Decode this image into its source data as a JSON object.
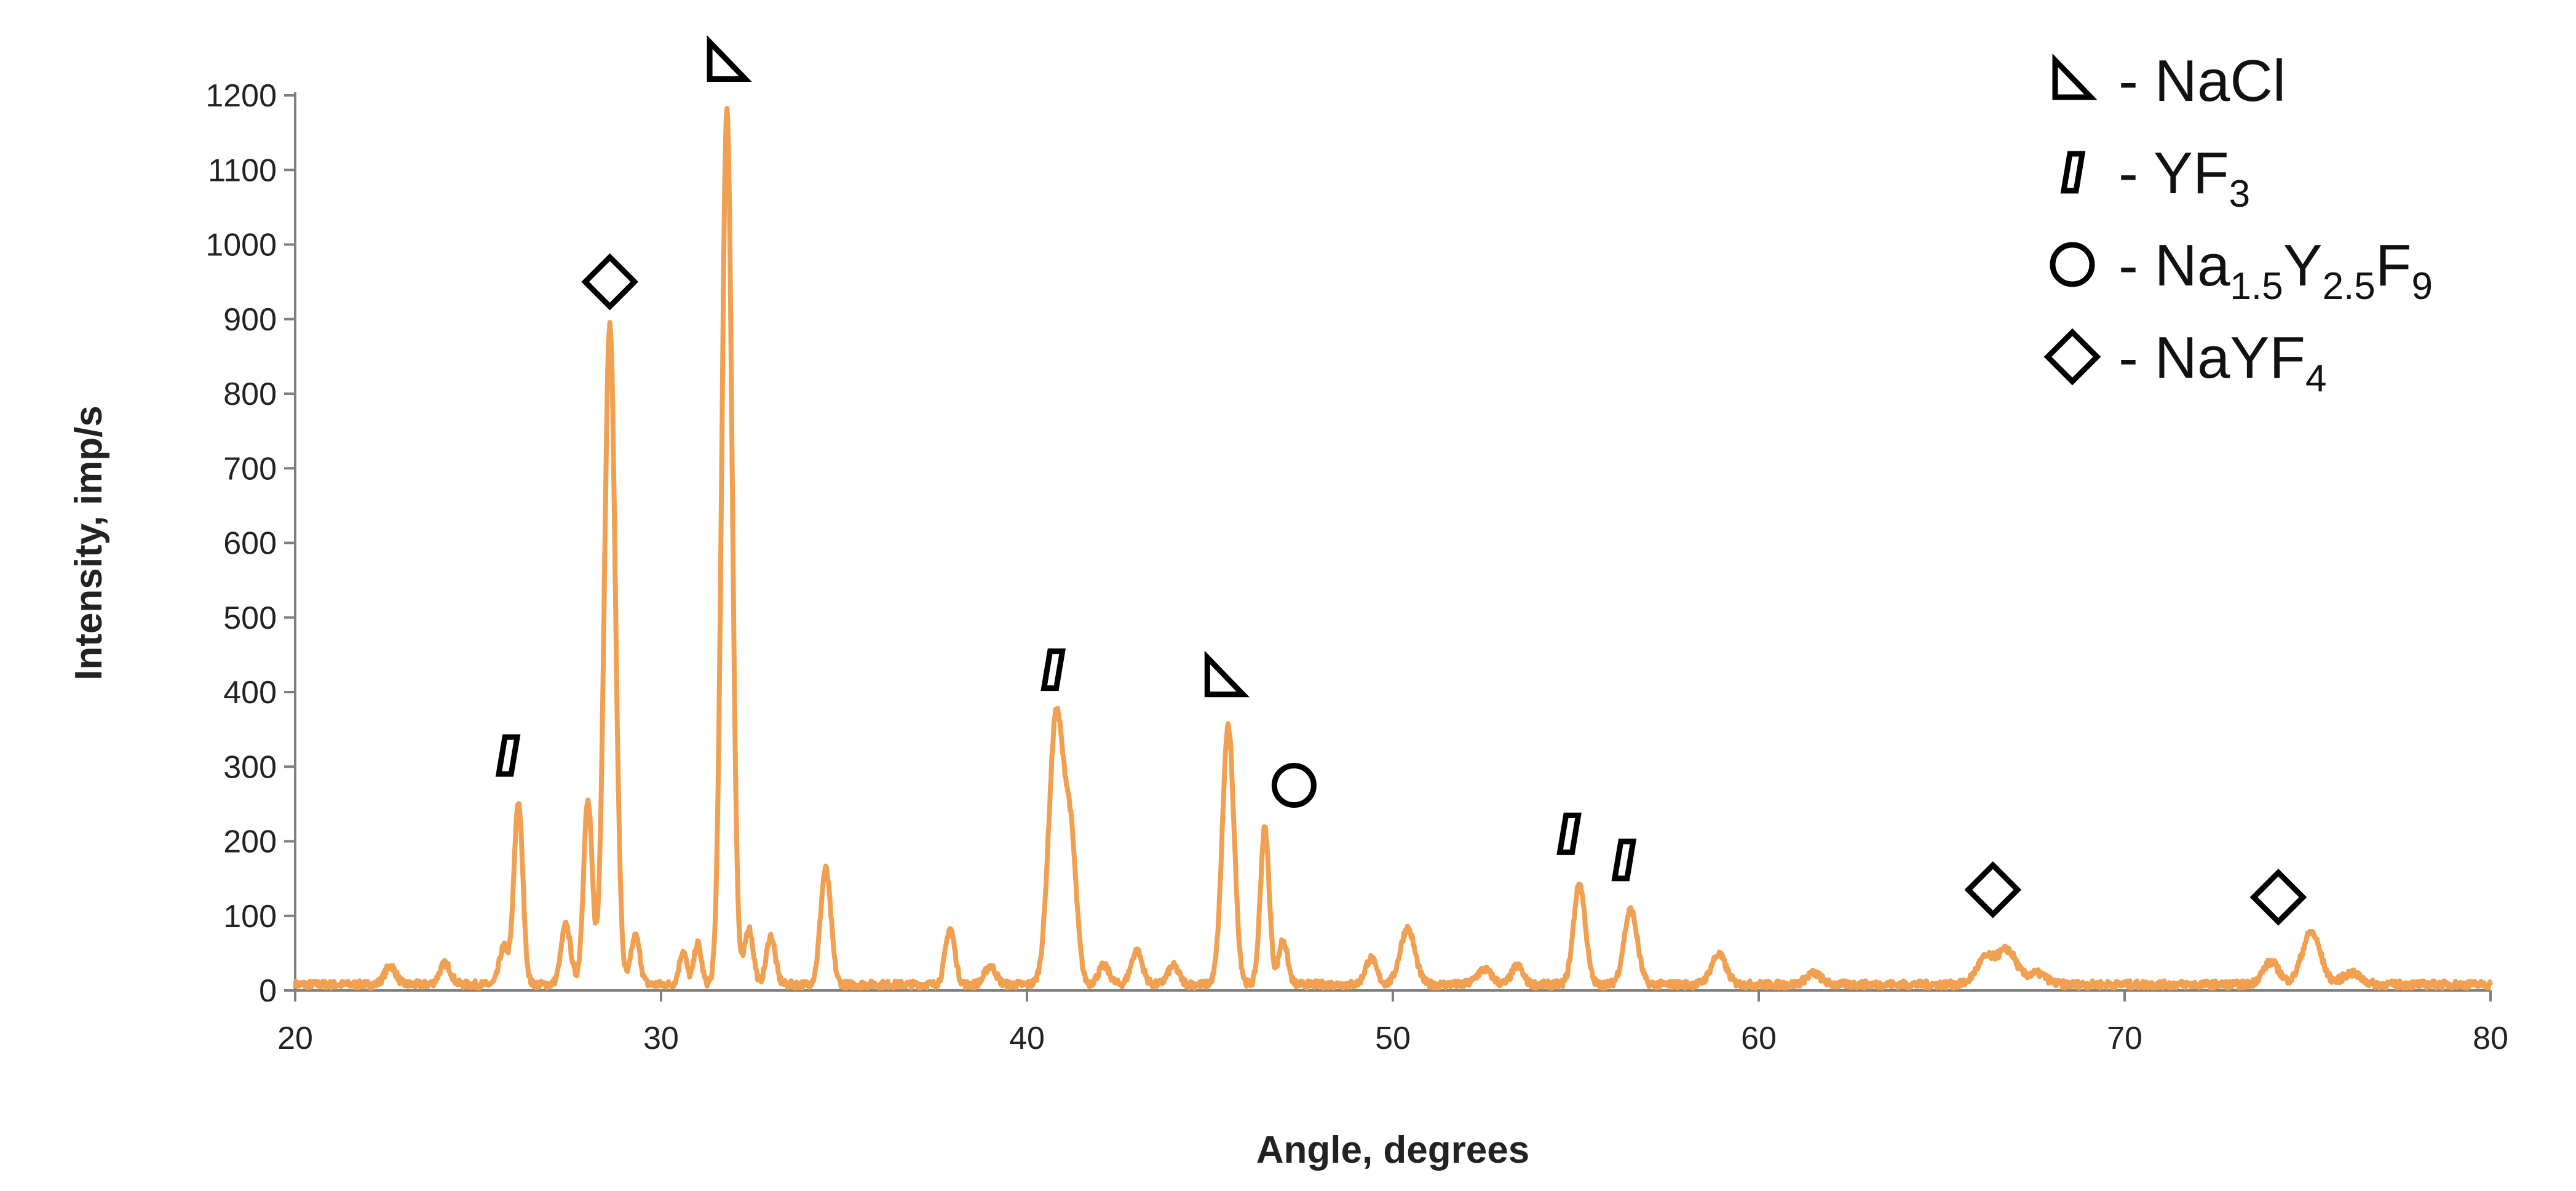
{
  "chart_data": {
    "type": "line",
    "xlabel": "Angle, degrees",
    "ylabel": "Intensity, imp/s",
    "xlim": [
      20,
      80
    ],
    "ylim": [
      0,
      1200
    ],
    "x_ticks": [
      "20",
      "30",
      "40",
      "50",
      "60",
      "70",
      "80"
    ],
    "y_ticks": [
      "0",
      "100",
      "200",
      "300",
      "400",
      "500",
      "600",
      "700",
      "800",
      "900",
      "1000",
      "1100",
      "1200"
    ],
    "grid": false,
    "line_color": "#f0a050",
    "baseline": 8,
    "peaks": [
      {
        "x": 22.6,
        "y": 25,
        "w": 0.15
      },
      {
        "x": 24.1,
        "y": 28,
        "w": 0.15
      },
      {
        "x": 25.7,
        "y": 50,
        "w": 0.12
      },
      {
        "x": 26.1,
        "y": 245,
        "w": 0.12
      },
      {
        "x": 27.4,
        "y": 80,
        "w": 0.13
      },
      {
        "x": 28.0,
        "y": 245,
        "w": 0.12
      },
      {
        "x": 28.6,
        "y": 885,
        "w": 0.15
      },
      {
        "x": 29.3,
        "y": 65,
        "w": 0.12
      },
      {
        "x": 30.6,
        "y": 45,
        "w": 0.1
      },
      {
        "x": 31.0,
        "y": 55,
        "w": 0.1
      },
      {
        "x": 31.8,
        "y": 1175,
        "w": 0.14
      },
      {
        "x": 32.4,
        "y": 75,
        "w": 0.12
      },
      {
        "x": 33.0,
        "y": 65,
        "w": 0.12
      },
      {
        "x": 34.5,
        "y": 155,
        "w": 0.14
      },
      {
        "x": 37.9,
        "y": 75,
        "w": 0.13
      },
      {
        "x": 39.0,
        "y": 25,
        "w": 0.15
      },
      {
        "x": 40.8,
        "y": 360,
        "w": 0.2
      },
      {
        "x": 41.2,
        "y": 180,
        "w": 0.16
      },
      {
        "x": 42.1,
        "y": 25,
        "w": 0.15
      },
      {
        "x": 43.0,
        "y": 45,
        "w": 0.15
      },
      {
        "x": 44.0,
        "y": 25,
        "w": 0.15
      },
      {
        "x": 45.5,
        "y": 345,
        "w": 0.16
      },
      {
        "x": 46.5,
        "y": 210,
        "w": 0.12
      },
      {
        "x": 47.0,
        "y": 60,
        "w": 0.12
      },
      {
        "x": 49.4,
        "y": 35,
        "w": 0.15
      },
      {
        "x": 50.4,
        "y": 75,
        "w": 0.2
      },
      {
        "x": 52.5,
        "y": 20,
        "w": 0.2
      },
      {
        "x": 53.4,
        "y": 25,
        "w": 0.15
      },
      {
        "x": 55.1,
        "y": 135,
        "w": 0.16
      },
      {
        "x": 56.5,
        "y": 100,
        "w": 0.18
      },
      {
        "x": 58.9,
        "y": 40,
        "w": 0.2
      },
      {
        "x": 61.5,
        "y": 15,
        "w": 0.2
      },
      {
        "x": 66.2,
        "y": 35,
        "w": 0.25
      },
      {
        "x": 66.8,
        "y": 45,
        "w": 0.25
      },
      {
        "x": 67.6,
        "y": 15,
        "w": 0.25
      },
      {
        "x": 74.0,
        "y": 30,
        "w": 0.22
      },
      {
        "x": 75.1,
        "y": 70,
        "w": 0.25
      },
      {
        "x": 76.2,
        "y": 15,
        "w": 0.25
      }
    ],
    "annotations": [
      {
        "marker": "triangle",
        "x": 31.8,
        "y": 1245
      },
      {
        "marker": "diamond",
        "x": 28.6,
        "y": 950
      },
      {
        "marker": "parallelogram",
        "x": 25.8,
        "y": 315
      },
      {
        "marker": "parallelogram",
        "x": 40.7,
        "y": 430
      },
      {
        "marker": "triangle",
        "x": 45.4,
        "y": 420
      },
      {
        "marker": "circle",
        "x": 47.3,
        "y": 275
      },
      {
        "marker": "parallelogram",
        "x": 54.8,
        "y": 210
      },
      {
        "marker": "parallelogram",
        "x": 56.3,
        "y": 175
      },
      {
        "marker": "diamond",
        "x": 66.4,
        "y": 135
      },
      {
        "marker": "diamond",
        "x": 74.2,
        "y": 125
      }
    ],
    "legend": {
      "position": "top-right",
      "items": [
        {
          "marker": "triangle",
          "label_parts": [
            {
              "t": "- NaCl",
              "sub": false
            }
          ]
        },
        {
          "marker": "parallelogram",
          "label_parts": [
            {
              "t": "- YF",
              "sub": false
            },
            {
              "t": "3",
              "sub": true
            }
          ]
        },
        {
          "marker": "circle",
          "label_parts": [
            {
              "t": "- Na",
              "sub": false
            },
            {
              "t": "1.5",
              "sub": true
            },
            {
              "t": "Y",
              "sub": false
            },
            {
              "t": "2.5",
              "sub": true
            },
            {
              "t": "F",
              "sub": false
            },
            {
              "t": "9",
              "sub": true
            }
          ]
        },
        {
          "marker": "diamond",
          "label_parts": [
            {
              "t": "- NaYF",
              "sub": false
            },
            {
              "t": "4",
              "sub": true
            }
          ]
        }
      ]
    }
  }
}
